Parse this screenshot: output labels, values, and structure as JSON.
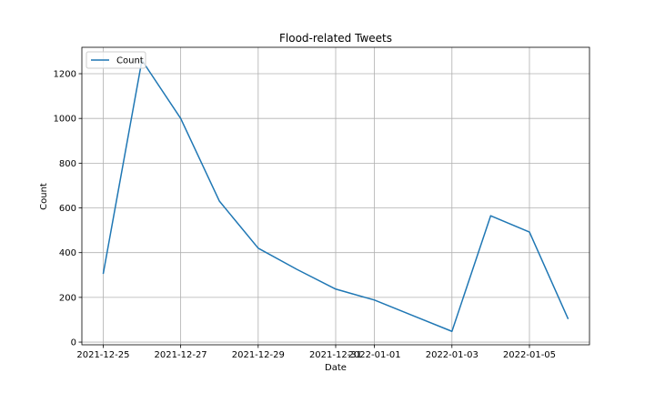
{
  "chart_data": {
    "type": "line",
    "title": "Flood-related Tweets",
    "xlabel": "Date",
    "ylabel": "Count",
    "x": [
      "2021-12-25",
      "2021-12-26",
      "2021-12-27",
      "2021-12-28",
      "2021-12-29",
      "2021-12-30",
      "2021-12-31",
      "2022-01-01",
      "2022-01-02",
      "2022-01-03",
      "2022-01-04",
      "2022-01-05",
      "2022-01-06"
    ],
    "series": [
      {
        "name": "Count",
        "color": "#1f77b4",
        "values": [
          305,
          1260,
          1000,
          630,
          420,
          325,
          237,
          188,
          118,
          48,
          565,
          492,
          103
        ]
      }
    ],
    "xticks": [
      "2021-12-25",
      "2021-12-27",
      "2021-12-29",
      "2021-12-31",
      "2022-01-01",
      "2022-01-03",
      "2022-01-05"
    ],
    "xtick_labels": [
      "2021-12-25",
      "2021-12-27",
      "2021-12-29",
      "2021-12-31",
      "2022-01-01",
      "2022-01-03",
      "2022-01-05"
    ],
    "yticks": [
      0,
      200,
      400,
      600,
      800,
      1000,
      1200
    ],
    "ytick_labels": [
      "0",
      "200",
      "400",
      "600",
      "800",
      "1000",
      "1200"
    ],
    "xlim": [
      "2021-12-24T10:48",
      "2022-01-06T13:12"
    ],
    "ylim": [
      -12,
      1318
    ],
    "grid": true,
    "legend": "upper-left",
    "colors": {
      "axis": "#000000",
      "grid": "#b0b0b0"
    }
  }
}
